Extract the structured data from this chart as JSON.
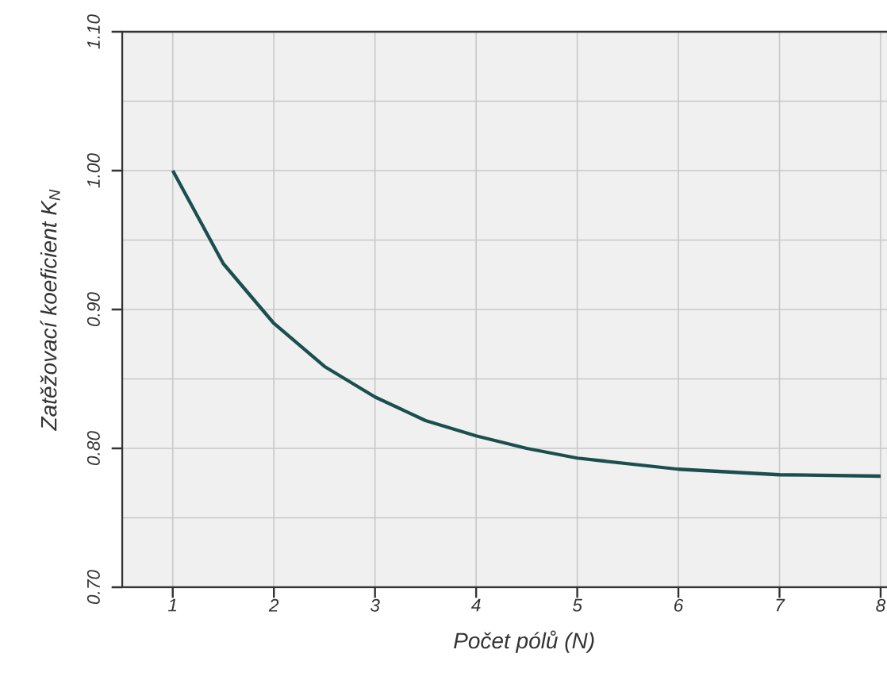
{
  "chart_data": {
    "type": "line",
    "xlabel": "Počet pólů (N)",
    "ylabel": "Zatěžovací koeficient K$_{N}$",
    "x": [
      1,
      1.5,
      2,
      2.5,
      3,
      3.5,
      4,
      4.5,
      5,
      6,
      7,
      8
    ],
    "series": [
      {
        "color": "#1b4f4f",
        "values": [
          1.0,
          0.933,
          0.89,
          0.859,
          0.837,
          0.82,
          0.809,
          0.8,
          0.793,
          0.785,
          0.781,
          0.78
        ]
      }
    ],
    "xlim": [
      0.5,
      8.45
    ],
    "ylim": [
      0.7,
      1.1
    ],
    "xticks": [
      1,
      2,
      3,
      4,
      5,
      6,
      7,
      8
    ],
    "yticks": [
      {
        "value": 0.7,
        "label": "0.70"
      },
      {
        "value": 0.8,
        "label": "0.80"
      },
      {
        "value": 0.9,
        "label": "0.90"
      },
      {
        "value": 1.0,
        "label": "1.00"
      },
      {
        "value": 1.1,
        "label": "1.10"
      }
    ],
    "grid": true,
    "marker": "none",
    "line_style": "solid"
  }
}
